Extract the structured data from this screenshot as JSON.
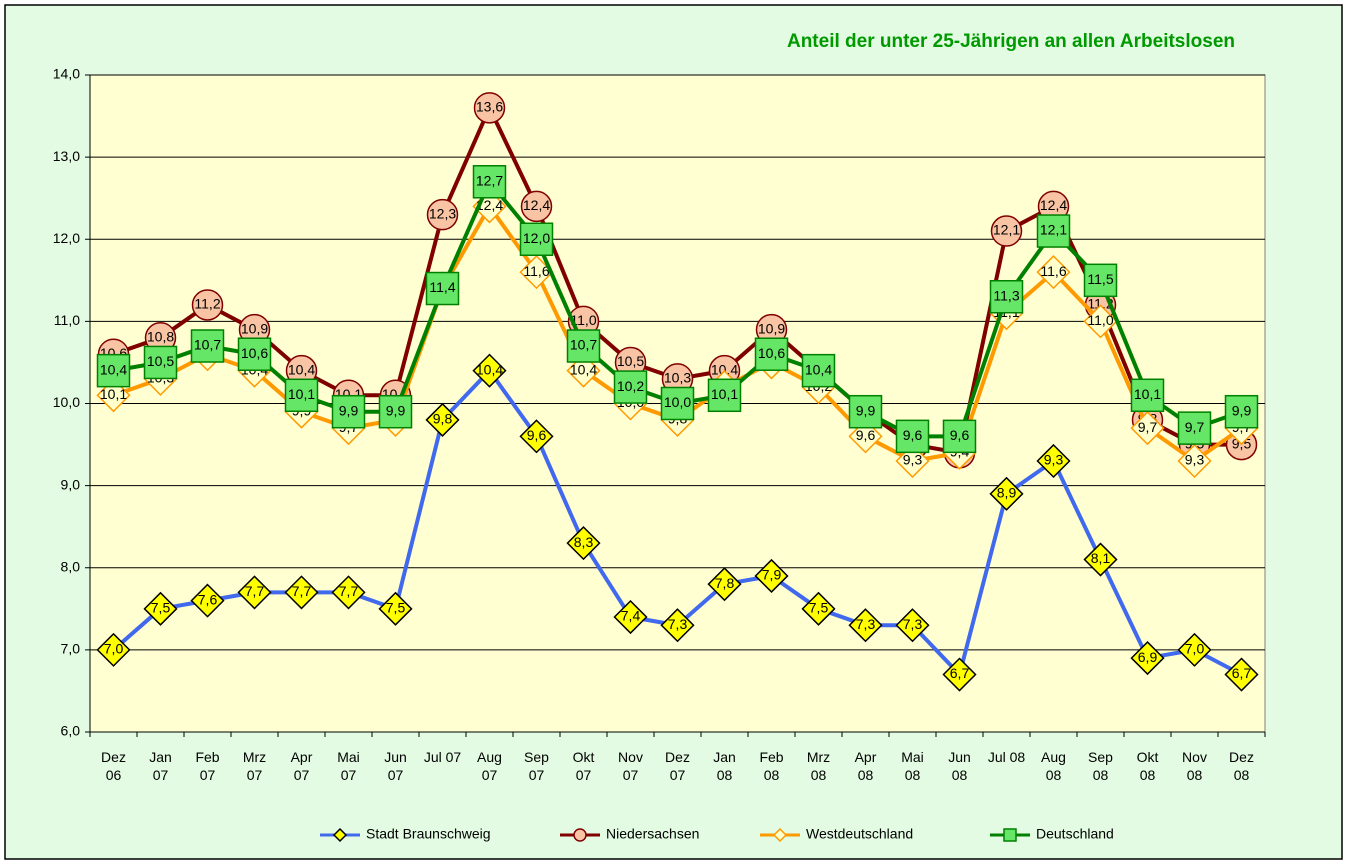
{
  "chart_data": {
    "type": "line",
    "title": "Anteil der unter 25-Jährigen an allen Arbeitslosen",
    "categories": [
      "Dez\n06",
      "Jan\n07",
      "Feb\n07",
      "Mrz\n07",
      "Apr\n07",
      "Mai\n07",
      "Jun\n07",
      "Jul 07",
      "Aug\n07",
      "Sep\n07",
      "Okt\n07",
      "Nov\n07",
      "Dez\n07",
      "Jan\n08",
      "Feb\n08",
      "Mrz\n08",
      "Apr\n08",
      "Mai\n08",
      "Jun\n08",
      "Jul 08",
      "Aug\n08",
      "Sep\n08",
      "Okt\n08",
      "Nov\n08",
      "Dez\n08"
    ],
    "series": [
      {
        "name": "Stadt Braunschweig",
        "color": "#4169ee",
        "marker": "diamond",
        "marker_fill": "#ffff00",
        "marker_stroke": "#000000",
        "values": [
          7.0,
          7.5,
          7.6,
          7.7,
          7.7,
          7.7,
          7.5,
          9.8,
          10.4,
          9.6,
          8.3,
          7.4,
          7.3,
          7.8,
          7.9,
          7.5,
          7.3,
          7.3,
          6.7,
          8.9,
          9.3,
          8.1,
          6.9,
          7.0,
          6.7
        ],
        "value_labels": [
          "7,0",
          "7,5",
          "7,6",
          "7,7",
          "7,7",
          "7,7",
          "7,5",
          "9,8",
          "10,4",
          "9,6",
          "8,3",
          "7,4",
          "7,3",
          "7,8",
          "7,9",
          "7,5",
          "7,3",
          "7,3",
          "6,7",
          "8,9",
          "9,3",
          "8,1",
          "6,9",
          "7,0",
          "6,7"
        ]
      },
      {
        "name": "Niedersachsen",
        "color": "#800000",
        "marker": "circle",
        "marker_fill": "#f8c4a4",
        "marker_stroke": "#800000",
        "values": [
          10.6,
          10.8,
          11.2,
          10.9,
          10.4,
          10.1,
          10.1,
          12.3,
          13.6,
          12.4,
          11.0,
          10.5,
          10.3,
          10.4,
          10.9,
          10.4,
          9.9,
          9.5,
          9.4,
          12.1,
          12.4,
          11.2,
          9.8,
          9.5,
          9.5
        ],
        "value_labels": [
          "10,6",
          "10,8",
          "11,2",
          "10,9",
          "10,4",
          "10,1",
          "10,1",
          "12,3",
          "13,6",
          "12,4",
          "11,0",
          "10,5",
          "10,3",
          "10,4",
          "10,9",
          "10,4",
          "9,9",
          "9,5",
          "9,4",
          "12,1",
          "12,4",
          "11,2",
          "9,8",
          "9,5",
          "9,5"
        ]
      },
      {
        "name": "Westdeutschland",
        "color": "#ff9900",
        "marker": "diamond",
        "marker_fill": "#ffffcc",
        "marker_stroke": "#ff9900",
        "values": [
          10.1,
          10.3,
          10.6,
          10.4,
          9.9,
          9.7,
          9.8,
          11.4,
          12.4,
          11.6,
          10.4,
          10.0,
          9.8,
          10.2,
          10.5,
          10.2,
          9.6,
          9.3,
          9.4,
          11.1,
          11.6,
          11.0,
          9.7,
          9.3,
          9.7
        ],
        "value_labels": [
          "10,1",
          "10,3",
          "10,6",
          "10,4",
          "9,9",
          "9,7",
          "9,8",
          "11,4",
          "12,4",
          "11,6",
          "10,4",
          "10,0",
          "9,8",
          "10,2",
          "10,5",
          "10,2",
          "9,6",
          "9,3",
          "9,4",
          "11,1",
          "11,6",
          "11,0",
          "9,7",
          "9,3",
          "9,7"
        ]
      },
      {
        "name": "Deutschland",
        "color": "#008000",
        "marker": "square",
        "marker_fill": "#66e666",
        "marker_stroke": "#008000",
        "values": [
          10.4,
          10.5,
          10.7,
          10.6,
          10.1,
          9.9,
          9.9,
          11.4,
          12.7,
          12.0,
          10.7,
          10.2,
          10.0,
          10.1,
          10.6,
          10.4,
          9.9,
          9.6,
          9.6,
          11.3,
          12.1,
          11.5,
          10.1,
          9.7,
          9.9
        ],
        "value_labels": [
          "10,4",
          "10,5",
          "10,7",
          "10,6",
          "10,1",
          "9,9",
          "9,9",
          "11,4",
          "12,7",
          "12,0",
          "10,7",
          "10,2",
          "10,0",
          "10,1",
          "10,6",
          "10,4",
          "9,9",
          "9,6",
          "9,6",
          "11,3",
          "12,1",
          "11,5",
          "10,1",
          "9,7",
          "9,9"
        ]
      }
    ],
    "ylim": [
      6.0,
      14.0
    ],
    "yticks": [
      {
        "value": 6.0,
        "label": "6,0"
      },
      {
        "value": 7.0,
        "label": "7,0"
      },
      {
        "value": 8.0,
        "label": "8,0"
      },
      {
        "value": 9.0,
        "label": "9,0"
      },
      {
        "value": 10.0,
        "label": "10,0"
      },
      {
        "value": 11.0,
        "label": "11,0"
      },
      {
        "value": 12.0,
        "label": "12,0"
      },
      {
        "value": 13.0,
        "label": "13,0"
      },
      {
        "value": 14.0,
        "label": "14,0"
      }
    ],
    "grid": true,
    "legend": "bottom"
  }
}
